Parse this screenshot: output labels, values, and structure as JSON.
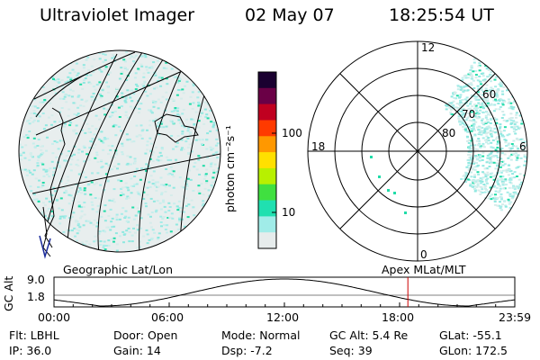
{
  "header": {
    "instrument": "Ultraviolet Imager",
    "date": "02 May 07",
    "time": "18:25:54 UT"
  },
  "left_panel": {
    "caption": "Geographic Lat/Lon"
  },
  "colorbar": {
    "unit_label": "photon cm⁻²s⁻¹",
    "ticks": [
      "100",
      "10"
    ],
    "colors": [
      "#1a0030",
      "#6a0046",
      "#c00020",
      "#ff3a00",
      "#ff9800",
      "#ffe000",
      "#b8f000",
      "#40e040",
      "#20e0b0",
      "#a0ece8",
      "#e6ecec"
    ]
  },
  "right_panel": {
    "caption": "Apex MLat/MLT",
    "mlt_labels": {
      "top": "12",
      "left": "18",
      "right": "6",
      "bottom": "0"
    },
    "lat_labels": [
      "60",
      "70",
      "80"
    ]
  },
  "altitude_plot": {
    "ylabel": "GC Alt",
    "yticks": [
      "9.0",
      "1.8"
    ],
    "xticks": [
      "00:00",
      "06:00",
      "12:00",
      "18:00",
      "23:59"
    ],
    "marker_time_hours": 18.43,
    "marker_color": "#cc0000"
  },
  "status": {
    "flt": "Flt: LBHL",
    "ip": "IP: 36.0",
    "door": "Door: Open",
    "gain": "Gain: 14",
    "mode": "Mode: Normal",
    "dsp": "Dsp:   -7.2",
    "gcalt": "GC Alt: 5.4 Re",
    "seq": "Seq: 39",
    "glat": "GLat: -55.1",
    "glon": "GLon: 172.5"
  }
}
